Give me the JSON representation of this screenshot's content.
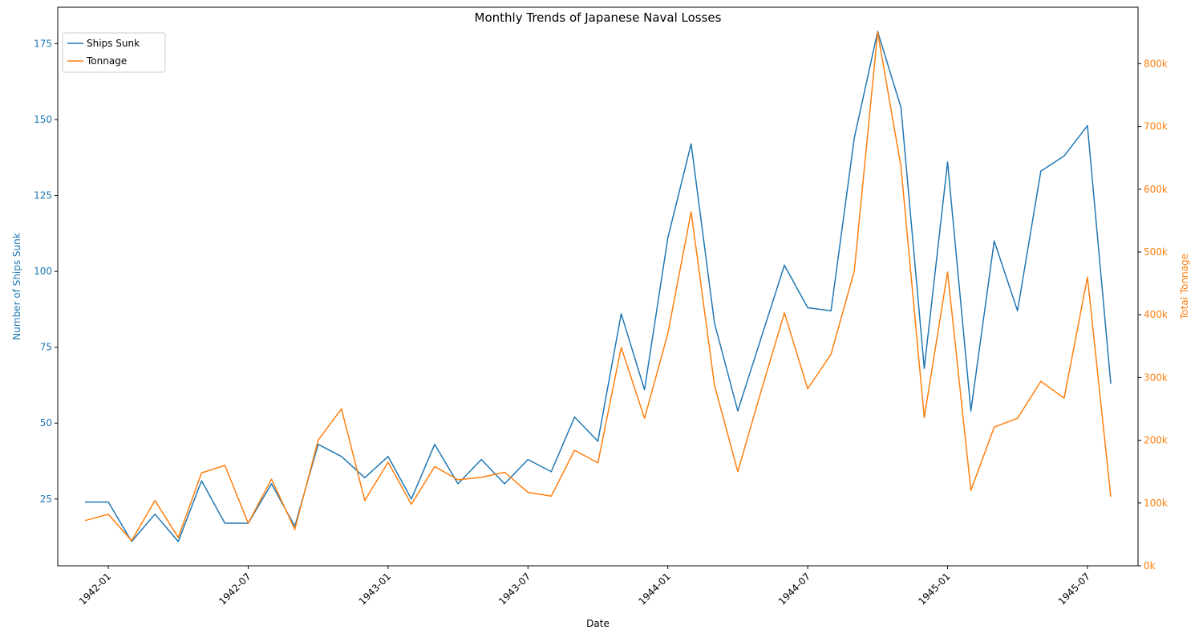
{
  "chart_data": {
    "type": "line",
    "title": "Monthly Trends of Japanese Naval Losses",
    "xlabel": "Date",
    "ylabel_left": "Number of Ships Sunk",
    "ylabel_right": "Total Tonnage",
    "x": [
      "1941-12",
      "1942-01",
      "1942-02",
      "1942-03",
      "1942-04",
      "1942-05",
      "1942-06",
      "1942-07",
      "1942-08",
      "1942-09",
      "1942-10",
      "1942-11",
      "1942-12",
      "1943-01",
      "1943-02",
      "1943-03",
      "1943-04",
      "1943-05",
      "1943-06",
      "1943-07",
      "1943-08",
      "1943-09",
      "1943-10",
      "1943-11",
      "1943-12",
      "1944-01",
      "1944-02",
      "1944-03",
      "1944-04",
      "1944-05",
      "1944-06",
      "1944-07",
      "1944-08",
      "1944-09",
      "1944-10",
      "1944-11",
      "1944-12",
      "1945-01",
      "1945-02",
      "1945-03",
      "1945-04",
      "1945-05",
      "1945-06",
      "1945-07",
      "1945-08"
    ],
    "x_ticks": [
      "1942-01",
      "1942-07",
      "1943-01",
      "1943-07",
      "1944-01",
      "1944-07",
      "1945-01",
      "1945-07"
    ],
    "ylim_left": [
      3,
      187
    ],
    "yticks_left": [
      25,
      50,
      75,
      100,
      125,
      150,
      175
    ],
    "ylim_right": [
      0,
      890000
    ],
    "yticks_right": [
      0,
      100000,
      200000,
      300000,
      400000,
      500000,
      600000,
      700000,
      800000
    ],
    "yticks_right_labels": [
      "0k",
      "100k",
      "200k",
      "300k",
      "400k",
      "500k",
      "600k",
      "700k",
      "800k"
    ],
    "legend_position": "top-left",
    "grid": false,
    "series": [
      {
        "name": "Ships Sunk",
        "axis": "left",
        "color": "#1f77b4",
        "values": [
          24,
          24,
          11,
          20,
          11,
          31,
          17,
          17,
          30,
          16,
          43,
          39,
          32,
          39,
          25,
          43,
          30,
          38,
          30,
          38,
          34,
          52,
          44,
          86,
          61,
          111,
          142,
          83,
          54,
          78,
          102,
          88,
          87,
          144,
          179,
          154,
          68,
          136,
          54,
          110,
          87,
          133,
          138,
          148,
          63
        ]
      },
      {
        "name": "Tonnage",
        "axis": "right",
        "color": "#ff7f0e",
        "values": [
          72000,
          82000,
          40000,
          104000,
          45000,
          148000,
          160000,
          68000,
          138000,
          58000,
          200000,
          250000,
          104000,
          165000,
          98000,
          158000,
          137000,
          141000,
          149000,
          117000,
          111000,
          184000,
          164000,
          348000,
          235000,
          370000,
          564000,
          288000,
          150000,
          278000,
          403000,
          282000,
          337000,
          470000,
          850000,
          636000,
          236000,
          468000,
          120000,
          221000,
          235000,
          294000,
          267000,
          460000,
          110000
        ]
      }
    ]
  }
}
